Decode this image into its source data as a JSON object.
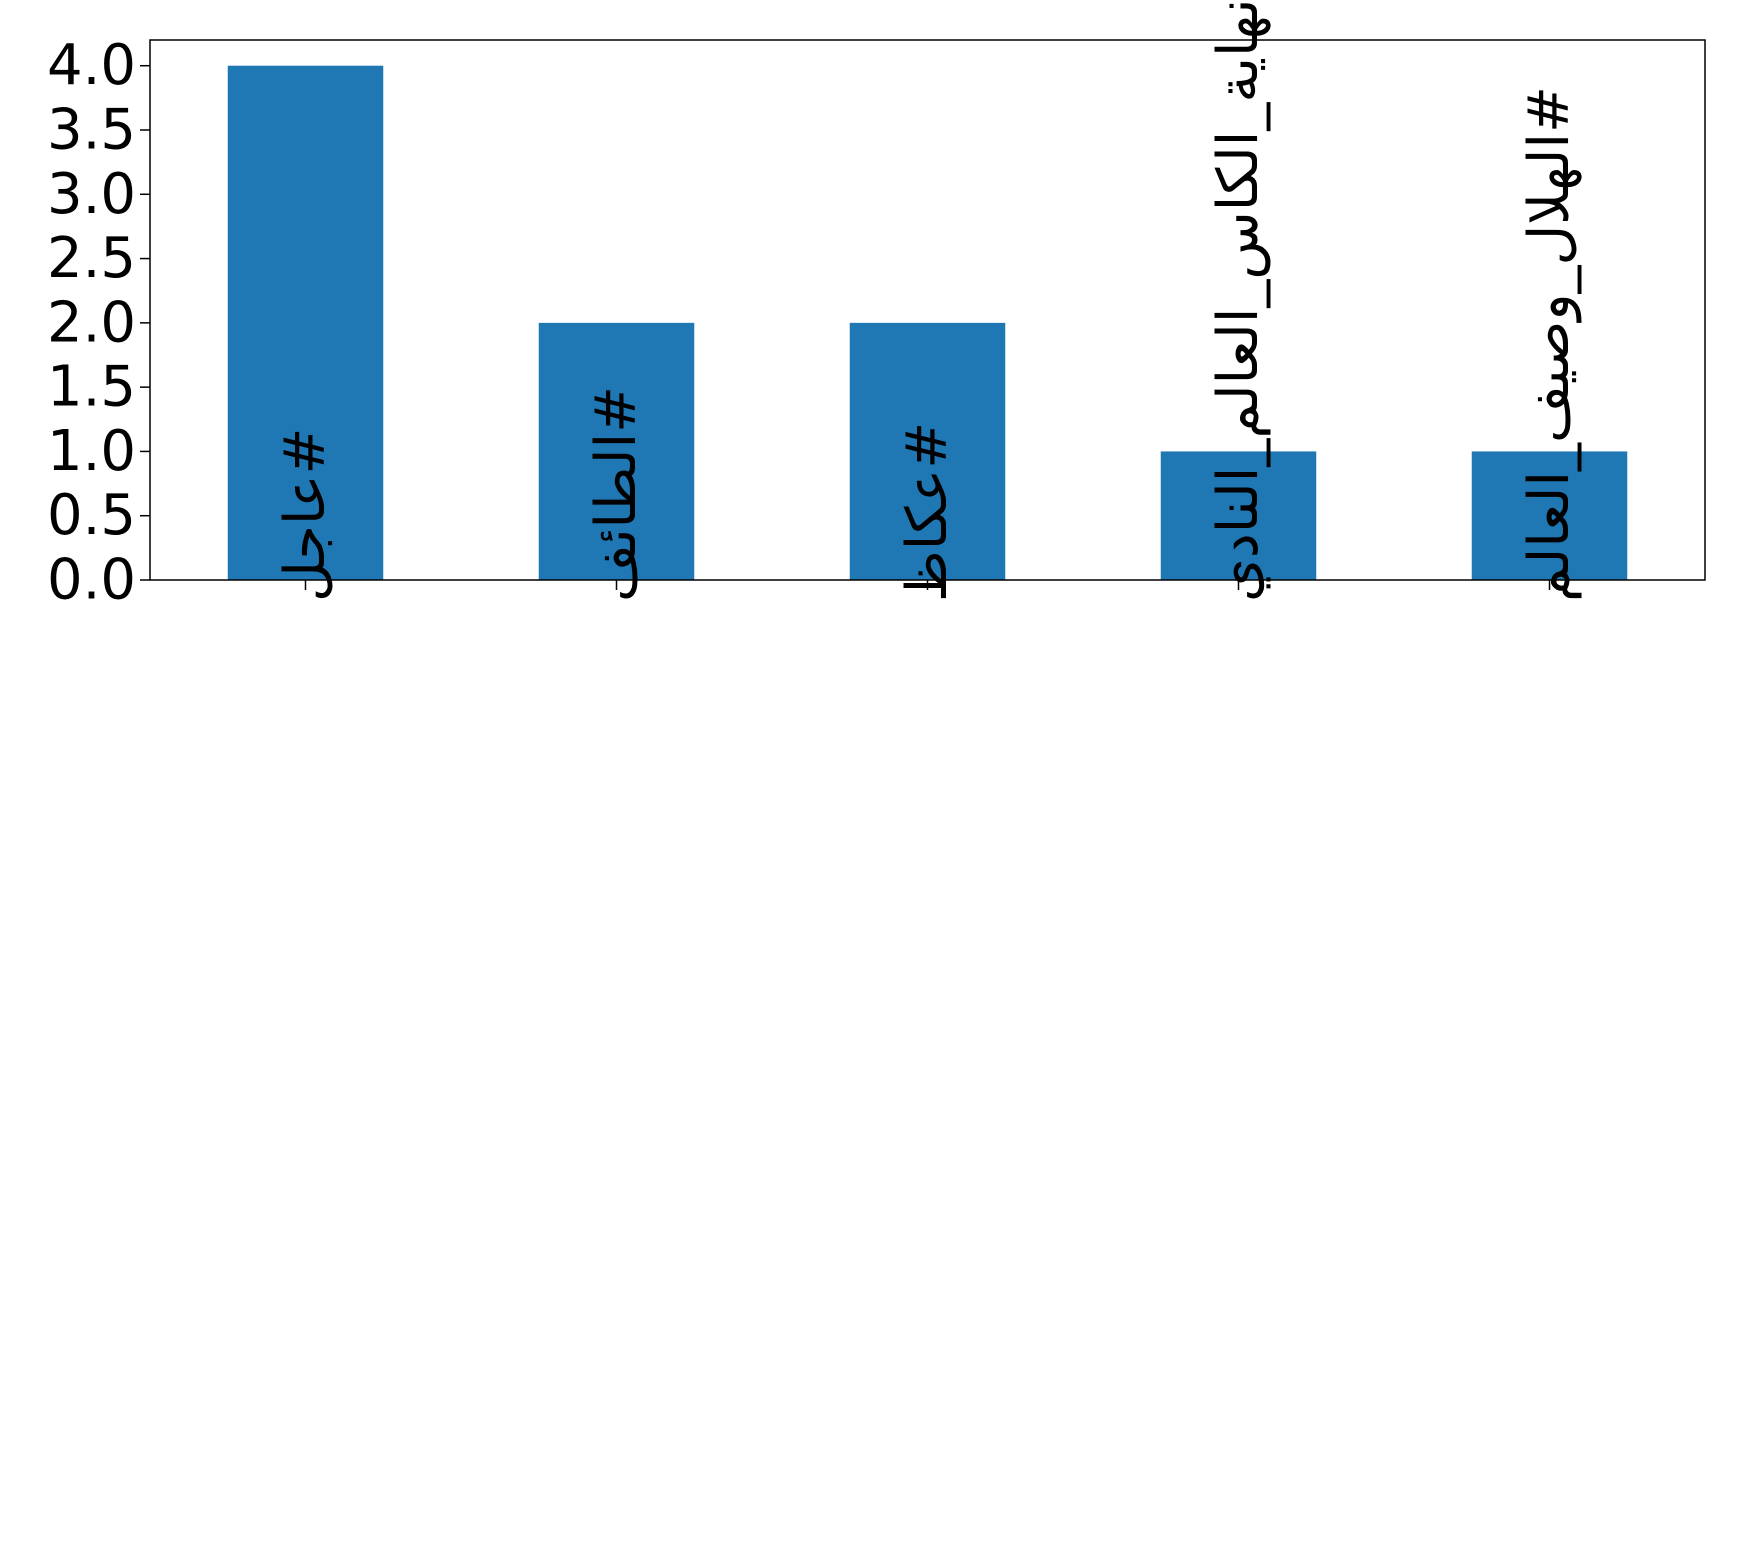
{
  "chart_data": {
    "type": "bar",
    "title": "",
    "xlabel": "",
    "ylabel": "",
    "categories": [
      "#عاجل",
      "#الطائف",
      "#عكاظ",
      "#نهاية_الكاس_العالم_النادي",
      "#الهلال_وصيف_العالم"
    ],
    "values": [
      4,
      2,
      2,
      1,
      1
    ],
    "ylim": [
      0,
      4.2
    ],
    "yticks": [
      0.0,
      0.5,
      1.0,
      1.5,
      2.0,
      2.5,
      3.0,
      3.5,
      4.0
    ],
    "ytick_labels": [
      "0.0",
      "0.5",
      "1.0",
      "1.5",
      "2.0",
      "2.5",
      "3.0",
      "3.5",
      "4.0"
    ],
    "bar_color": "#1f77b4",
    "grid": false,
    "legend": "none"
  }
}
